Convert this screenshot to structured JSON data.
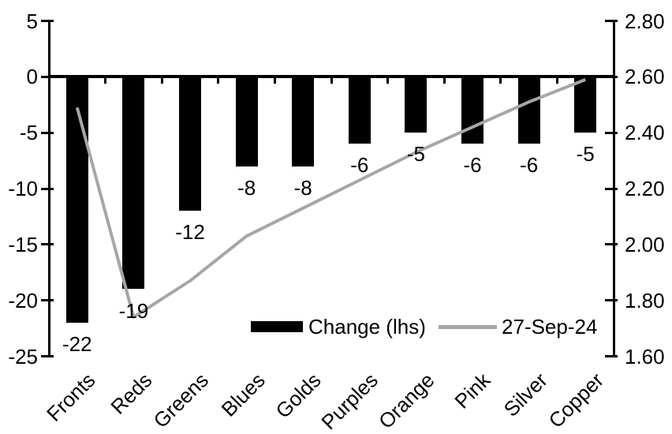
{
  "chart_data": {
    "type": "bar",
    "title": "",
    "categories": [
      "Fronts",
      "Reds",
      "Greens",
      "Blues",
      "Golds",
      "Purples",
      "Orange",
      "Pink",
      "Silver",
      "Copper"
    ],
    "series": [
      {
        "name": "Change (lhs)",
        "type": "bar",
        "axis": "left",
        "values": [
          -22,
          -19,
          -12,
          -8,
          -8,
          -6,
          -5,
          -6,
          -6,
          -5
        ],
        "data_labels": [
          "-22",
          "-19",
          "-12",
          "-8",
          "-8",
          "-6",
          "-5",
          "-6",
          "-6",
          "-5"
        ]
      },
      {
        "name": "27-Sep-24",
        "type": "line",
        "axis": "right",
        "values": [
          2.49,
          1.74,
          1.87,
          2.03,
          2.13,
          2.23,
          2.33,
          2.42,
          2.51,
          2.59
        ]
      }
    ],
    "left_axis": {
      "min": -25,
      "max": 5,
      "ticks": [
        "5",
        "0",
        "-5",
        "-10",
        "-15",
        "-20",
        "-25"
      ]
    },
    "right_axis": {
      "min": 1.6,
      "max": 2.8,
      "ticks": [
        "2.80",
        "2.60",
        "2.40",
        "2.20",
        "2.00",
        "1.80",
        "1.60"
      ]
    },
    "grid": false,
    "legend_position": "bottom-center-inside"
  },
  "colors": {
    "bar": "#000000",
    "line": "#a6a6a6",
    "axis": "#000000",
    "text": "#000000",
    "background": "#ffffff"
  }
}
